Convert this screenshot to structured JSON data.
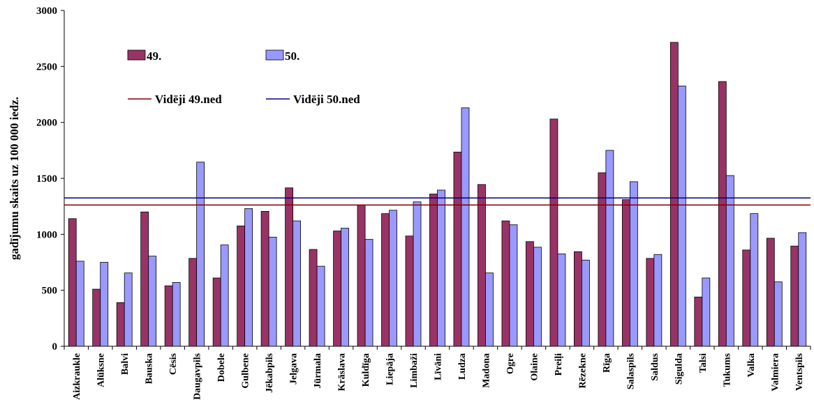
{
  "chart_data": {
    "type": "bar",
    "ylabel": "gadījumu skaits uz 100 000 iedz.",
    "ylim": [
      0,
      3000
    ],
    "yticks": [
      "0",
      "500",
      "1000",
      "1500",
      "2000",
      "2500",
      "3000"
    ],
    "legend_position": "top-left",
    "categories": [
      "Aizkraukle",
      "Alūksne",
      "Balvi",
      "Bauska",
      "Cēsis",
      "Daugavpils",
      "Dobele",
      "Gulbene",
      "Jēkabpils",
      "Jelgava",
      "Jūrmala",
      "Krāslava",
      "Kuldīga",
      "Liepāja",
      "Limbaži",
      "Līvāni",
      "Ludza",
      "Madona",
      "Ogre",
      "Olaine",
      "Preiļi",
      "Rēzekne",
      "Rīga",
      "Salaspils",
      "Saldus",
      "Sigulda",
      "Talsi",
      "Tukums",
      "Valka",
      "Valmiera",
      "Ventspils"
    ],
    "series": [
      {
        "name": "49.",
        "color": "#993366",
        "values": [
          1140,
          510,
          390,
          1200,
          540,
          785,
          610,
          1075,
          1205,
          1415,
          865,
          1030,
          1260,
          1185,
          985,
          1360,
          1735,
          1445,
          1120,
          935,
          2030,
          845,
          1550,
          1310,
          785,
          2715,
          440,
          2365,
          860,
          965,
          895
        ]
      },
      {
        "name": "50.",
        "color": "#9999ff",
        "values": [
          760,
          750,
          655,
          805,
          570,
          1645,
          905,
          1230,
          975,
          1120,
          715,
          1055,
          955,
          1215,
          1290,
          1395,
          2130,
          655,
          1085,
          885,
          825,
          770,
          1750,
          1470,
          820,
          2325,
          610,
          1525,
          1185,
          575,
          1015
        ]
      }
    ],
    "reference_lines": [
      {
        "name": "Vidēji 49.ned",
        "value": 1262,
        "color": "#800000"
      },
      {
        "name": "Vidēji 50.ned",
        "value": 1325,
        "color": "#000080"
      }
    ]
  }
}
